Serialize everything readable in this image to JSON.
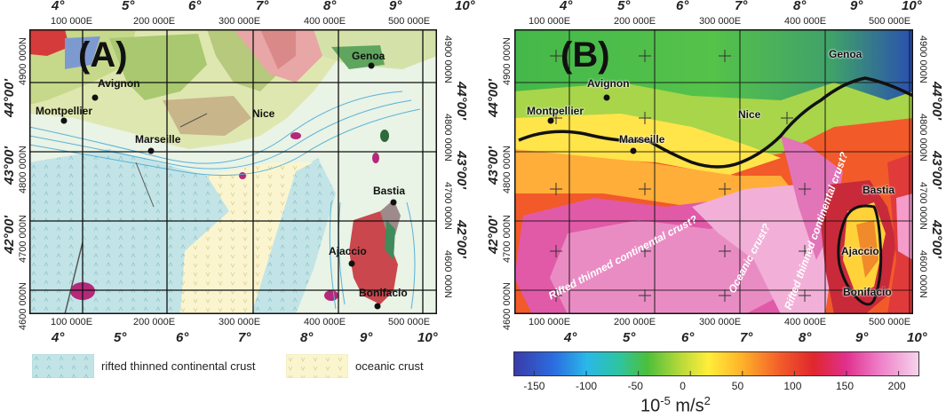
{
  "panel_a": {
    "label": "(A)",
    "top_degrees": [
      "4°",
      "5°",
      "6°",
      "7°",
      "8°",
      "9°",
      "10°"
    ],
    "bottom_degrees": [
      "4°",
      "5°",
      "6°",
      "7°",
      "8°",
      "9°",
      "10°"
    ],
    "top_eastings": [
      "100 000E",
      "200 000E",
      "300 000E",
      "400 000E",
      "500 000E"
    ],
    "bottom_eastings": [
      "100 000E",
      "200 000E",
      "300 000E",
      "400 000E",
      "500 000E"
    ],
    "left_northings": [
      "4900 000N",
      "4800 000N",
      "4700 000N",
      "4600 000N"
    ],
    "left_degrees": [
      "44°00'",
      "43°00'",
      "42°00'"
    ],
    "right_northings": [
      "4900 000N",
      "4800 000N",
      "4700 000N",
      "4600 000N"
    ],
    "right_degrees": [
      "44°00'",
      "43°00'",
      "42°00'"
    ],
    "cities": [
      "Genoa",
      "Avignon",
      "Montpellier",
      "Nice",
      "Marseille",
      "Bastia",
      "Ajaccio",
      "Bonifacio"
    ]
  },
  "panel_b": {
    "label": "(B)",
    "top_degrees": [
      "4°",
      "5°",
      "6°",
      "7°",
      "8°",
      "9°",
      "10°"
    ],
    "bottom_degrees": [
      "4°",
      "5°",
      "6°",
      "7°",
      "8°",
      "9°",
      "10°"
    ],
    "top_eastings": [
      "100 000E",
      "200 000E",
      "300 000E",
      "400 000E",
      "500 000E"
    ],
    "bottom_eastings": [
      "100 000E",
      "200 000E",
      "300 000E",
      "400 000E",
      "500 000E"
    ],
    "left_northings": [
      "4900 000N",
      "4800 000N",
      "4700 000N",
      "4600 000N"
    ],
    "left_degrees": [
      "44°00'",
      "43°00'",
      "42°00'"
    ],
    "right_northings": [
      "4900 000N",
      "4800 000N",
      "4700 000N",
      "4600 000N"
    ],
    "right_degrees": [
      "44°00'",
      "43°00'",
      "42°00'"
    ],
    "cities": [
      "Genoa",
      "Avignon",
      "Montpellier",
      "Nice",
      "Marseille",
      "Bastia",
      "Ajaccio",
      "Bonifacio"
    ],
    "annotations": [
      "Rifted thinned continental crust?",
      "Oceanic crust?",
      "Rifted thinned continental crust?"
    ]
  },
  "legend": {
    "rifted": "rifted thinned continental crust",
    "oceanic": "oceanic crust",
    "colors": {
      "rifted": "#bfe3e6",
      "oceanic": "#fbf6d0"
    }
  },
  "colorbar": {
    "ticks": [
      "-150",
      "-100",
      "-50",
      "0",
      "50",
      "100",
      "150",
      "200"
    ],
    "min": -170,
    "max": 220,
    "unit_base": "10",
    "unit_exp": "-5",
    "unit_mid": " m/s",
    "unit_sq": "2"
  }
}
